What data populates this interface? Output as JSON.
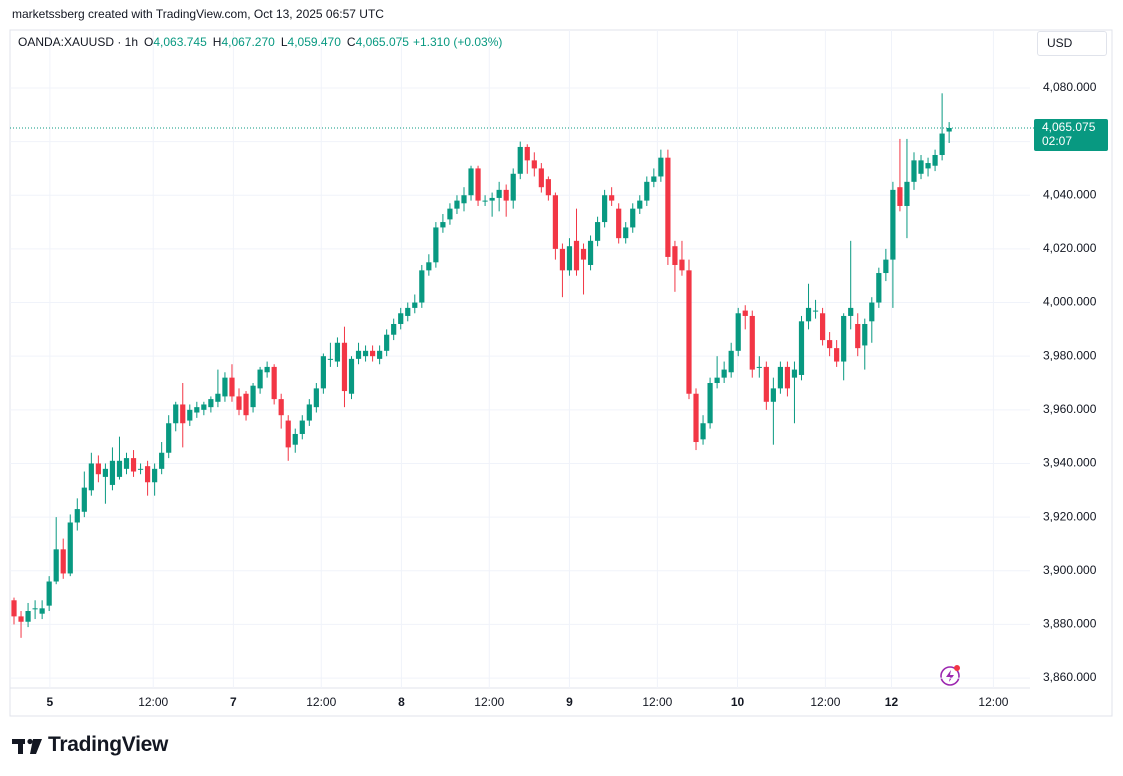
{
  "header": {
    "attribution": "marketssberg created with TradingView.com, Oct 13, 2025 06:57 UTC"
  },
  "chart_data": {
    "type": "candlestick",
    "symbol": "OANDA:XAUUSD · 1h",
    "ohlc_legend": [
      {
        "key": "O",
        "text": "4,063.745"
      },
      {
        "key": "H",
        "text": "4,067.270"
      },
      {
        "key": "L",
        "text": "4,059.470"
      },
      {
        "key": "C",
        "text": "4,065.075"
      }
    ],
    "change": "+1.310 (+0.03%)",
    "currency": "USD",
    "countdown": "02:07",
    "up_color": "#089981",
    "down_color": "#f23645",
    "grid": true,
    "open": [
      3889,
      3883,
      3881,
      3886,
      3884,
      3887,
      3896,
      3908,
      3899,
      3918,
      3922,
      3930,
      3940,
      3935,
      3932,
      3935,
      3938,
      3942,
      3938,
      3939,
      3933,
      3938,
      3944,
      3955,
      3962,
      3956,
      3959,
      3960,
      3961,
      3963,
      3965,
      3972,
      3965,
      3966,
      3961,
      3968,
      3974,
      3976,
      3964,
      3956,
      3947,
      3951,
      3956,
      3961,
      3968,
      3979,
      3978,
      3985,
      3966,
      3979,
      3980,
      3982,
      3979,
      3982,
      3988,
      3992,
      3995,
      3998,
      4000,
      4012,
      4015,
      4028,
      4031,
      4035,
      4037,
      4040,
      4050,
      4038,
      4038,
      4039,
      4042,
      4038,
      4048,
      4058,
      4053,
      4050,
      4046,
      4040,
      4020,
      4012,
      4023,
      4020,
      4014,
      4023,
      4030,
      4040,
      4035,
      4024,
      4028,
      4035,
      4038,
      4045,
      4047,
      4054,
      4021,
      4016,
      4012,
      3966,
      3949,
      3955,
      3970,
      3972,
      3974,
      3982,
      3997,
      3995,
      3976,
      3976,
      3963,
      3968,
      3976,
      3972,
      3973,
      3993,
      3997,
      3996,
      3986,
      3983,
      3978,
      3995,
      3992,
      3984,
      3993,
      4000,
      4011,
      4016,
      4043,
      4036,
      4045,
      4048,
      4050,
      4051,
      4055,
      4063.745
    ],
    "high": [
      3890,
      3885,
      3888,
      3889,
      3889,
      3898,
      3920,
      3912,
      3921,
      3927,
      3937,
      3944,
      3943,
      3940,
      3946,
      3950,
      3944,
      3945,
      3940,
      3941,
      3940,
      3948,
      3958,
      3963,
      3970,
      3962,
      3963,
      3963,
      3965,
      3975,
      3974,
      3977,
      3968,
      3967,
      3970,
      3976,
      3978,
      3977,
      3966,
      3958,
      3953,
      3958,
      3964,
      3970,
      3981,
      3985,
      3987,
      3991,
      3980,
      3985,
      3984,
      3984,
      3984,
      3990,
      3994,
      3998,
      4000,
      4003,
      4014,
      4018,
      4030,
      4033,
      4037,
      4040,
      4043,
      4051,
      4051,
      4040,
      4041,
      4045,
      4044,
      4050,
      4060,
      4059,
      4056,
      4052,
      4047,
      4041,
      4022,
      4024,
      4035,
      4022,
      4025,
      4032,
      4042,
      4043,
      4037,
      4030,
      4037,
      4040,
      4047,
      4050,
      4057,
      4057,
      4023,
      4023,
      4016,
      3968,
      3958,
      3972,
      3980,
      3978,
      3985,
      3998,
      3999,
      3997,
      3980,
      3978,
      3972,
      3978,
      3978,
      3978,
      3995,
      4007,
      4001,
      3998,
      3989,
      3986,
      3996,
      4023,
      3996,
      3994,
      4002,
      4013,
      4020,
      4045,
      4061,
      4061,
      4056,
      4055,
      4054,
      4057,
      4078,
      4067.27
    ],
    "low": [
      3880,
      3875,
      3879,
      3882,
      3882,
      3885,
      3895,
      3897,
      3898,
      3915,
      3920,
      3928,
      3933,
      3925,
      3930,
      3934,
      3936,
      3935,
      3936,
      3928,
      3928,
      3936,
      3942,
      3952,
      3946,
      3954,
      3957,
      3958,
      3959,
      3961,
      3963,
      3963,
      3958,
      3956,
      3959,
      3966,
      3972,
      3962,
      3953,
      3941,
      3944,
      3949,
      3954,
      3959,
      3966,
      3976,
      3976,
      3961,
      3964,
      3977,
      3978,
      3978,
      3977,
      3980,
      3986,
      3990,
      3993,
      3996,
      3998,
      4010,
      4013,
      4026,
      4029,
      4033,
      4034,
      4038,
      4036,
      4036,
      4032,
      4034,
      4032,
      4035,
      4046,
      4048,
      4047,
      4041,
      4038,
      4016,
      4002,
      4010,
      4010,
      4003,
      4012,
      4021,
      4028,
      4036,
      4022,
      4022,
      4026,
      4033,
      4036,
      4043,
      4045,
      4014,
      4004,
      4010,
      3964,
      3945,
      3947,
      3953,
      3968,
      3970,
      3972,
      3980,
      3990,
      3972,
      3972,
      3960,
      3947,
      3966,
      3965,
      3955,
      3971,
      3990,
      3994,
      3984,
      3980,
      3976,
      3971,
      3990,
      3980,
      3975,
      3985,
      3998,
      4008,
      3998,
      4034,
      4024,
      4042,
      4046,
      4047,
      4049,
      4053,
      4059.47
    ],
    "close": [
      3883,
      3881,
      3885,
      3886,
      3886,
      3896,
      3908,
      3899,
      3918,
      3923,
      3931,
      3940,
      3936,
      3938,
      3941,
      3941,
      3942,
      3937,
      3938,
      3933,
      3938,
      3944,
      3955,
      3962,
      3955,
      3960,
      3961,
      3962,
      3964,
      3966,
      3972,
      3965,
      3960,
      3958,
      3969,
      3975,
      3976,
      3964,
      3958,
      3946,
      3951,
      3956,
      3962,
      3968,
      3980,
      3979,
      3985,
      3967,
      3979,
      3982,
      3982,
      3980,
      3982,
      3988,
      3992,
      3996,
      3998,
      4000,
      4012,
      4015,
      4028,
      4030,
      4035,
      4038,
      4040,
      4050,
      4038,
      4038,
      4039,
      4042,
      4038,
      4048,
      4058,
      4053,
      4050,
      4043,
      4040,
      4020,
      4012,
      4021,
      4012,
      4016,
      4023,
      4030,
      4040,
      4038,
      4024,
      4028,
      4035,
      4038,
      4045,
      4047,
      4054,
      4017,
      4014,
      4012,
      3966,
      3948,
      3955,
      3970,
      3972,
      3975,
      3982,
      3996,
      3995,
      3975,
      3976,
      3963,
      3968,
      3976,
      3968,
      3975,
      3993,
      3998,
      3997,
      3986,
      3983,
      3978,
      3995,
      3998,
      3983,
      3992,
      4000,
      4011,
      4016,
      4042,
      4036,
      4045,
      4053,
      4053,
      4052,
      4055,
      4063,
      4065.075
    ],
    "ylim": [
      3856.3,
      4101.6
    ],
    "yticks": [
      {
        "value": 3860,
        "label": "3,860.000"
      },
      {
        "value": 3880,
        "label": "3,880.000"
      },
      {
        "value": 3900,
        "label": "3,900.000"
      },
      {
        "value": 3920,
        "label": "3,920.000"
      },
      {
        "value": 3940,
        "label": "3,940.000"
      },
      {
        "value": 3960,
        "label": "3,960.000"
      },
      {
        "value": 3980,
        "label": "3,980.000"
      },
      {
        "value": 4000,
        "label": "4,000.000"
      },
      {
        "value": 4020,
        "label": "4,020.000"
      },
      {
        "value": 4040,
        "label": "4,040.000"
      },
      {
        "value": 4060,
        "label": "4,060.000"
      },
      {
        "value": 4080,
        "label": "4,080.000"
      }
    ],
    "xlim": [
      -0.57,
      144.5
    ],
    "xticks": [
      {
        "value": 5.1,
        "label": "5"
      },
      {
        "value": 19.8,
        "label": "12:00"
      },
      {
        "value": 31.2,
        "label": "7"
      },
      {
        "value": 43.7,
        "label": "12:00"
      },
      {
        "value": 55.1,
        "label": "8"
      },
      {
        "value": 67.6,
        "label": "12:00"
      },
      {
        "value": 79.0,
        "label": "9"
      },
      {
        "value": 91.5,
        "label": "12:00"
      },
      {
        "value": 102.9,
        "label": "10"
      },
      {
        "value": 115.4,
        "label": "12:00"
      },
      {
        "value": 124.8,
        "label": "12"
      },
      {
        "value": 139.3,
        "label": "12:00"
      }
    ]
  },
  "footer": {
    "logo": "TradingView"
  }
}
